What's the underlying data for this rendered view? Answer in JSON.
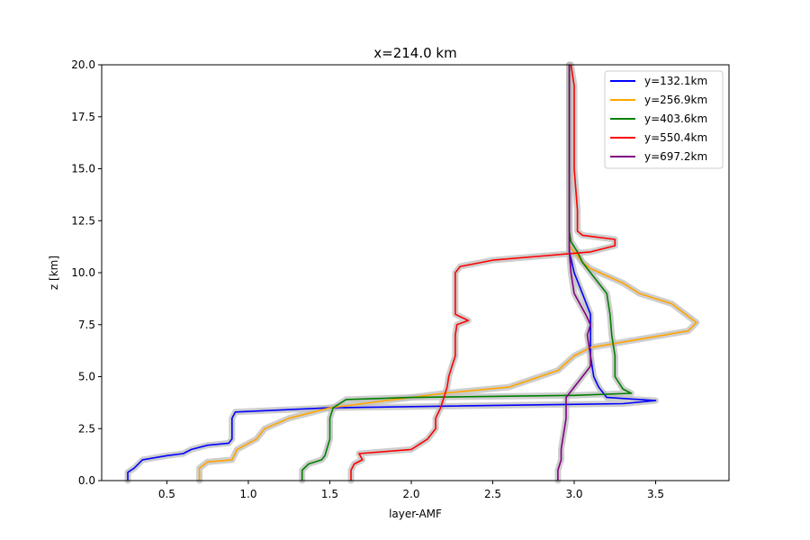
{
  "chart_data": {
    "type": "line",
    "title": "x=214.0 km",
    "xlabel": "layer-AMF",
    "ylabel": "z [km]",
    "xlim": [
      0.1,
      3.95
    ],
    "ylim": [
      0,
      20
    ],
    "xticks": [
      "0.5",
      "1.0",
      "1.5",
      "2.0",
      "2.5",
      "3.0",
      "3.5"
    ],
    "yticks": [
      "0.0",
      "2.5",
      "5.0",
      "7.5",
      "10.0",
      "12.5",
      "15.0",
      "17.5",
      "20.0"
    ],
    "grid": false,
    "legend_position": "top-right",
    "band_color": "#bebebe",
    "series": [
      {
        "name": "y=132.1km",
        "color": "#0000ff",
        "points": [
          [
            0.26,
            0
          ],
          [
            0.26,
            0.4
          ],
          [
            0.3,
            0.6
          ],
          [
            0.35,
            1.0
          ],
          [
            0.5,
            1.2
          ],
          [
            0.6,
            1.3
          ],
          [
            0.65,
            1.5
          ],
          [
            0.75,
            1.7
          ],
          [
            0.88,
            1.8
          ],
          [
            0.9,
            2.0
          ],
          [
            0.9,
            3.0
          ],
          [
            0.92,
            3.3
          ],
          [
            1.5,
            3.5
          ],
          [
            3.3,
            3.7
          ],
          [
            3.5,
            3.85
          ],
          [
            3.2,
            4.0
          ],
          [
            3.15,
            4.5
          ],
          [
            3.12,
            5.0
          ],
          [
            3.1,
            6.0
          ],
          [
            3.1,
            7.0
          ],
          [
            3.1,
            8.0
          ],
          [
            3.05,
            9.0
          ],
          [
            3.0,
            10.0
          ],
          [
            2.97,
            11.0
          ],
          [
            2.97,
            11.5
          ],
          [
            2.97,
            12
          ],
          [
            2.97,
            15
          ],
          [
            2.97,
            17.5
          ],
          [
            2.97,
            20
          ]
        ]
      },
      {
        "name": "y=256.9km",
        "color": "#ffa500",
        "points": [
          [
            0.7,
            0
          ],
          [
            0.7,
            0.6
          ],
          [
            0.75,
            0.9
          ],
          [
            0.9,
            1.0
          ],
          [
            0.93,
            1.5
          ],
          [
            1.05,
            2.0
          ],
          [
            1.1,
            2.5
          ],
          [
            1.25,
            3.0
          ],
          [
            1.5,
            3.5
          ],
          [
            2.0,
            4.0
          ],
          [
            2.2,
            4.2
          ],
          [
            2.6,
            4.5
          ],
          [
            2.9,
            5.3
          ],
          [
            3.0,
            6.0
          ],
          [
            3.1,
            6.4
          ],
          [
            3.4,
            6.8
          ],
          [
            3.7,
            7.2
          ],
          [
            3.75,
            7.6
          ],
          [
            3.6,
            8.5
          ],
          [
            3.4,
            9.0
          ],
          [
            3.3,
            9.5
          ],
          [
            3.1,
            10.2
          ],
          [
            3.05,
            10.5
          ],
          [
            3.0,
            11.0
          ],
          [
            2.97,
            11.3
          ],
          [
            2.97,
            11.5
          ],
          [
            2.97,
            12
          ],
          [
            2.97,
            15
          ],
          [
            2.97,
            17.5
          ],
          [
            2.97,
            20
          ]
        ]
      },
      {
        "name": "y=403.6km",
        "color": "#008000",
        "points": [
          [
            1.33,
            0
          ],
          [
            1.33,
            0.5
          ],
          [
            1.37,
            0.8
          ],
          [
            1.45,
            1.0
          ],
          [
            1.47,
            1.2
          ],
          [
            1.5,
            2.0
          ],
          [
            1.5,
            3.0
          ],
          [
            1.52,
            3.5
          ],
          [
            1.6,
            3.9
          ],
          [
            2.0,
            4.0
          ],
          [
            3.0,
            4.1
          ],
          [
            3.35,
            4.2
          ],
          [
            3.3,
            4.4
          ],
          [
            3.25,
            5.0
          ],
          [
            3.25,
            6.0
          ],
          [
            3.23,
            7.0
          ],
          [
            3.22,
            8.0
          ],
          [
            3.2,
            9.0
          ],
          [
            3.1,
            10.0
          ],
          [
            3.05,
            10.5
          ],
          [
            3.02,
            11.0
          ],
          [
            2.98,
            11.5
          ],
          [
            2.97,
            12
          ],
          [
            2.97,
            14
          ],
          [
            2.97,
            16
          ],
          [
            2.97,
            18
          ],
          [
            2.97,
            20
          ]
        ]
      },
      {
        "name": "y=550.4km",
        "color": "#ff0000",
        "points": [
          [
            1.63,
            0
          ],
          [
            1.63,
            0.5
          ],
          [
            1.65,
            0.8
          ],
          [
            1.7,
            1.0
          ],
          [
            1.68,
            1.3
          ],
          [
            2.0,
            1.5
          ],
          [
            2.1,
            2.0
          ],
          [
            2.15,
            2.5
          ],
          [
            2.15,
            3.0
          ],
          [
            2.18,
            3.5
          ],
          [
            2.2,
            4.0
          ],
          [
            2.22,
            4.5
          ],
          [
            2.23,
            5.0
          ],
          [
            2.25,
            5.5
          ],
          [
            2.27,
            6.0
          ],
          [
            2.27,
            7.0
          ],
          [
            2.28,
            7.5
          ],
          [
            2.35,
            7.7
          ],
          [
            2.27,
            8.0
          ],
          [
            2.27,
            9.0
          ],
          [
            2.27,
            10.0
          ],
          [
            2.3,
            10.3
          ],
          [
            2.5,
            10.6
          ],
          [
            2.8,
            10.8
          ],
          [
            3.1,
            11.0
          ],
          [
            3.25,
            11.3
          ],
          [
            3.25,
            11.6
          ],
          [
            3.05,
            11.8
          ],
          [
            3.02,
            12.0
          ],
          [
            3.02,
            13.0
          ],
          [
            3.01,
            14.0
          ],
          [
            3.0,
            15.0
          ],
          [
            3.0,
            16.5
          ],
          [
            3.0,
            18.0
          ],
          [
            3.0,
            19.0
          ],
          [
            2.98,
            20
          ]
        ]
      },
      {
        "name": "y=697.2km",
        "color": "#800080",
        "points": [
          [
            2.9,
            0
          ],
          [
            2.9,
            0.5
          ],
          [
            2.92,
            1.0
          ],
          [
            2.92,
            1.5
          ],
          [
            2.93,
            2.0
          ],
          [
            2.94,
            2.5
          ],
          [
            2.95,
            3.0
          ],
          [
            2.95,
            3.5
          ],
          [
            2.95,
            4.0
          ],
          [
            3.0,
            4.5
          ],
          [
            3.05,
            5.0
          ],
          [
            3.1,
            5.5
          ],
          [
            3.1,
            6.0
          ],
          [
            3.08,
            7.0
          ],
          [
            3.1,
            7.5
          ],
          [
            3.07,
            8.0
          ],
          [
            3.0,
            9.0
          ],
          [
            2.98,
            10.0
          ],
          [
            2.97,
            11.0
          ],
          [
            2.97,
            12.0
          ],
          [
            2.97,
            15.0
          ],
          [
            2.97,
            17.5
          ],
          [
            2.97,
            20
          ]
        ]
      }
    ]
  }
}
